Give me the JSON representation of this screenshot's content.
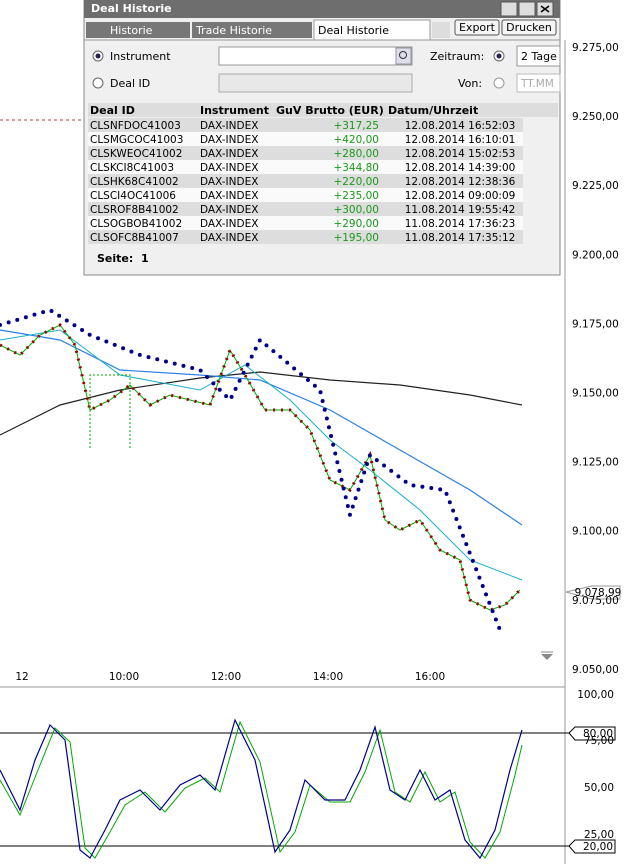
{
  "window": {
    "title": "Deal Historie",
    "tabs": [
      "Historie",
      "Trade Historie",
      "Deal Historie"
    ],
    "buttons": [
      "Export",
      "Drucken"
    ]
  },
  "form": {
    "instrument_label": "Instrument",
    "deal_id_label": "Deal ID",
    "period_label": "Zeitraum:",
    "period_value": "2 Tage",
    "from_label": "Von:",
    "from_placeholder": "TT.MM"
  },
  "table": {
    "headers": [
      "Deal ID",
      "Instrument",
      "GuV Brutto (EUR)",
      "Datum/Uhrzeit"
    ],
    "rows": [
      [
        "CLSNFDOC41003",
        "DAX-INDEX",
        "+317,25",
        "12.08.2014 16:52:03"
      ],
      [
        "CLSMGCOC41003",
        "DAX-INDEX",
        "+420,00",
        "12.08.2014 16:10:01"
      ],
      [
        "CLSKWEOC41002",
        "DAX-INDEX",
        "+280,00",
        "12.08.2014 15:02:53"
      ],
      [
        "CLSKCI8C41003",
        "DAX-INDEX",
        "+344,80",
        "12.08.2014 14:39:00"
      ],
      [
        "CLSHK68C41002",
        "DAX-INDEX",
        "+220,00",
        "12.08.2014 12:38:36"
      ],
      [
        "CLSCI4OC41006",
        "DAX-INDEX",
        "+235,00",
        "12.08.2014 09:00:09"
      ],
      [
        "CLSROF8B41002",
        "DAX-INDEX",
        "+300,00",
        "11.08.2014 19:55:42"
      ],
      [
        "CLSOGBOB41002",
        "DAX-INDEX",
        "+290,00",
        "11.08.2014 17:36:23"
      ],
      [
        "CLSOFC8B41007",
        "DAX-INDEX",
        "+195,00",
        "11.08.2014 17:35:12"
      ]
    ]
  },
  "pager": {
    "label": "Seite:",
    "page": "1"
  },
  "price_chart": {
    "y_labels": [
      "9.275,00",
      "9.250,00",
      "9.225,00",
      "9.200,00",
      "9.175,00",
      "9.150,00",
      "9.125,00",
      "9.100,00",
      "9.075,00",
      "9.050,00"
    ],
    "x_labels": [
      "12",
      "10:00",
      "12:00",
      "14:00",
      "16:00"
    ],
    "last_price": "9.078,99"
  },
  "oscillator": {
    "y_labels": [
      "100,00",
      "75,00",
      "50,00",
      "25,00"
    ],
    "upper_level": "80,00",
    "lower_level": "20,00"
  }
}
